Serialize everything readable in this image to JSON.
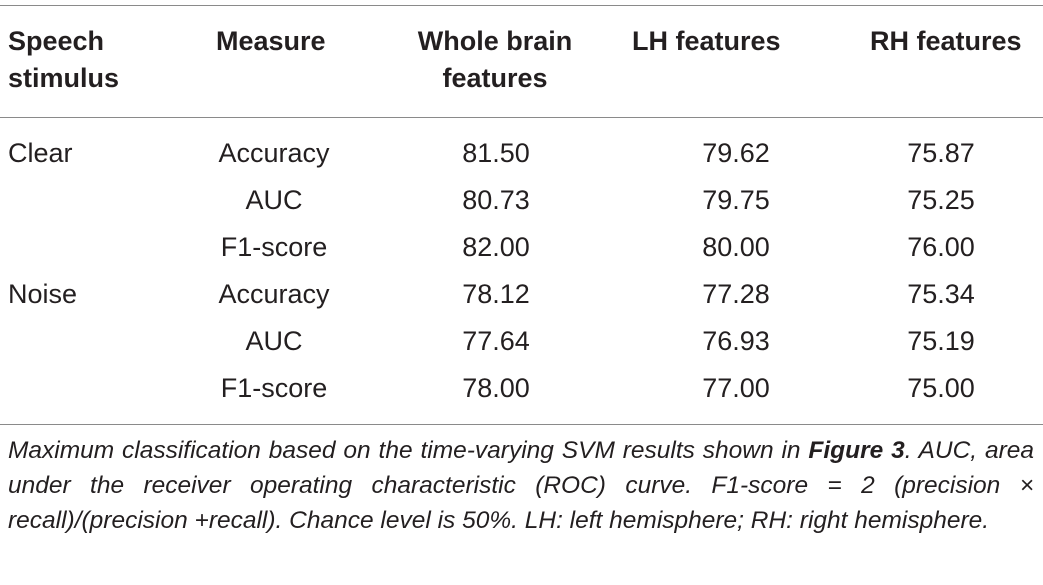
{
  "headers": {
    "speech_stimulus_line1": "Speech",
    "speech_stimulus_line2": "stimulus",
    "measure": "Measure",
    "whole_brain_line1": "Whole brain",
    "whole_brain_line2": "features",
    "lh": "LH features",
    "rh": "RH features"
  },
  "rows": [
    {
      "stimulus": "Clear",
      "measure": "Accuracy",
      "whole_brain": "81.50",
      "lh": "79.62",
      "rh": "75.87"
    },
    {
      "stimulus": "",
      "measure": "AUC",
      "whole_brain": "80.73",
      "lh": "79.75",
      "rh": "75.25"
    },
    {
      "stimulus": "",
      "measure": "F1-score",
      "whole_brain": "82.00",
      "lh": "80.00",
      "rh": "76.00"
    },
    {
      "stimulus": "Noise",
      "measure": "Accuracy",
      "whole_brain": "78.12",
      "lh": "77.28",
      "rh": "75.34"
    },
    {
      "stimulus": "",
      "measure": "AUC",
      "whole_brain": "77.64",
      "lh": "76.93",
      "rh": "75.19"
    },
    {
      "stimulus": "",
      "measure": "F1-score",
      "whole_brain": "78.00",
      "lh": "77.00",
      "rh": "75.00"
    }
  ],
  "caption": {
    "part1": "Maximum classification based on the time-varying SVM results shown in ",
    "figure_ref": "Figure 3",
    "part2": ". AUC, area under the receiver operating characteristic (ROC) curve. F1-score = 2 (precision × recall)/(precision +recall). Chance level is 50%. LH: left hemisphere; RH: right hemisphere."
  }
}
